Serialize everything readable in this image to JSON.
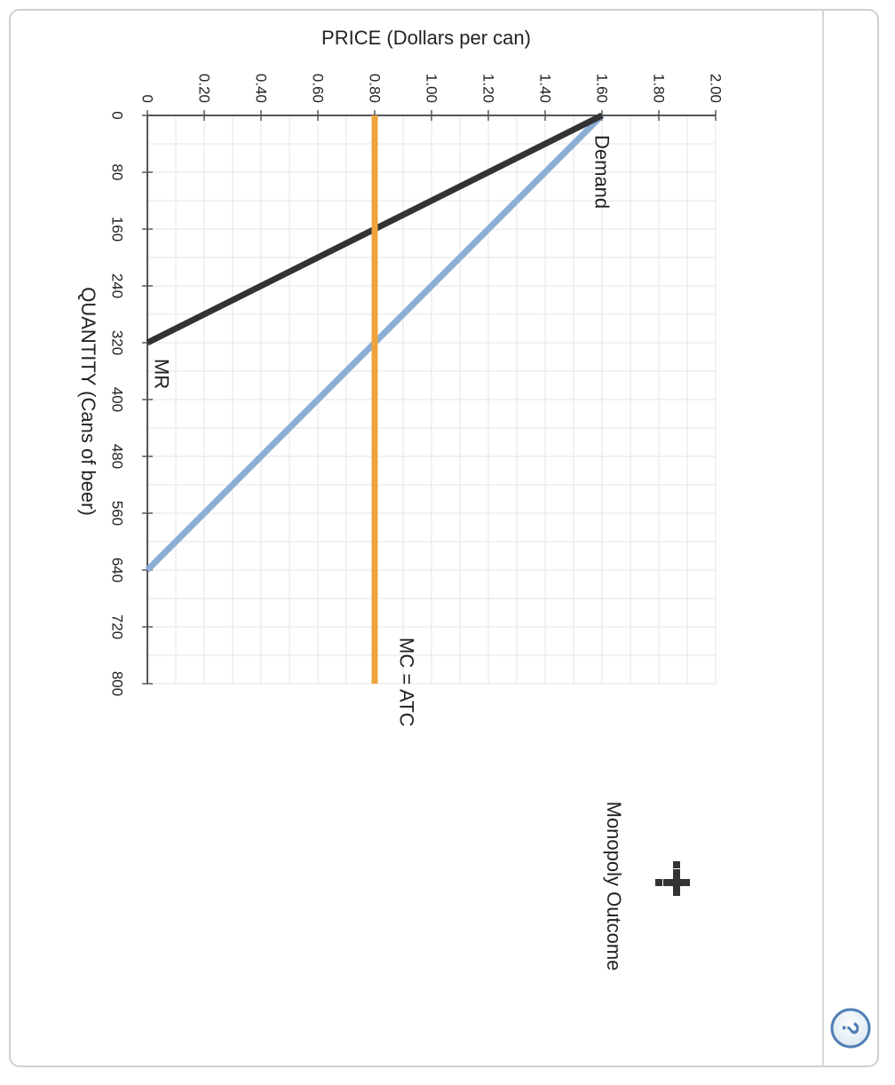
{
  "chart_data": {
    "type": "line",
    "orientation": "rotated-90-clockwise",
    "xlabel": "QUANTITY (Cans of beer)",
    "ylabel": "PRICE (Dollars per can)",
    "xlim": [
      0,
      800
    ],
    "ylim": [
      0,
      2.0
    ],
    "x_ticks": [
      "0",
      "80",
      "160",
      "240",
      "320",
      "400",
      "480",
      "560",
      "640",
      "720",
      "800"
    ],
    "y_ticks": [
      "0",
      "0.20",
      "0.40",
      "0.60",
      "0.80",
      "1.00",
      "1.20",
      "1.40",
      "1.60",
      "1.80",
      "2.00"
    ],
    "grid": true,
    "series": [
      {
        "name": "Demand",
        "color": "#8aafd4",
        "points": [
          [
            0,
            1.6
          ],
          [
            640,
            0
          ]
        ]
      },
      {
        "name": "MR",
        "color": "#333333",
        "points": [
          [
            0,
            1.6
          ],
          [
            320,
            0
          ]
        ]
      },
      {
        "name": "MC = ATC",
        "color": "#f0a33a",
        "points": [
          [
            0,
            0.8
          ],
          [
            800,
            0.8
          ]
        ]
      }
    ]
  },
  "legend": {
    "label": "Monopoly Outcome",
    "icon": "plus-cross-icon"
  },
  "help": {
    "icon": "question-icon",
    "glyph": "?"
  }
}
